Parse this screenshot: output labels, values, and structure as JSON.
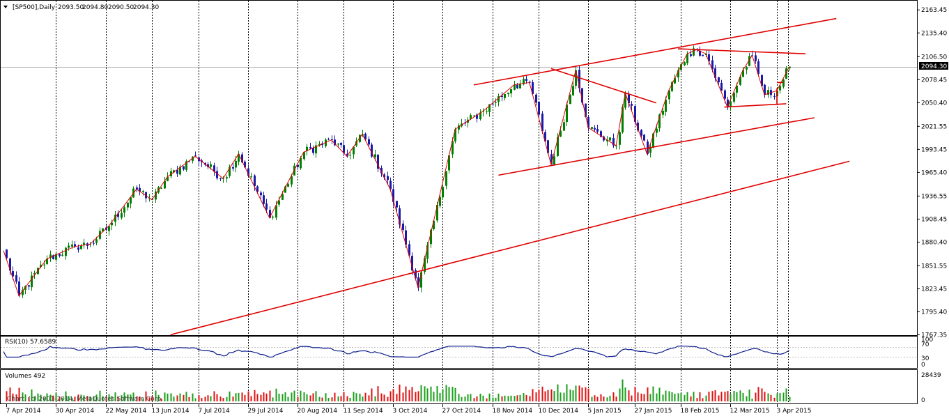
{
  "window": {
    "title": "[SP500],Daily",
    "ohlc": [
      "2093.50",
      "2094.80",
      "2090.50",
      "2094.30"
    ]
  },
  "colors": {
    "up": "#008000",
    "down": "#1a1aa6",
    "trendline": "#e00000",
    "rsi": "#0a1a8c",
    "volume_up": "#1a9e1a",
    "volume_down": "#e01010",
    "grid": "#000000",
    "price_marker_bg": "#000000"
  },
  "rsi_panel": {
    "label": "RSI(10) 57.6589",
    "levels": [
      "100",
      "70",
      "30",
      "0"
    ]
  },
  "volume_panel": {
    "label": "Volumes 492",
    "levels": [
      "28439",
      "0"
    ],
    "watermark": "Chart, (c) 2001-2014, MetaQuotes Software Corp."
  },
  "chart_data": [
    {
      "type": "candlestick",
      "title": "[SP500],Daily",
      "ohlc_last": {
        "open": 2093.5,
        "high": 2094.8,
        "low": 2090.5,
        "close": 2094.3
      },
      "last_price_label": "2094.30",
      "ylim": [
        1761.0,
        2173.0
      ],
      "y_tick_labels": [
        "2163.45",
        "2135.40",
        "2106.50",
        "2078.45",
        "2050.40",
        "2021.55",
        "1993.45",
        "1965.40",
        "1936.55",
        "1908.45",
        "1880.40",
        "1851.55",
        "1823.45",
        "1795.40",
        "1767.35"
      ],
      "x_tick_labels": [
        "7 Apr 2014",
        "30 Apr 2014",
        "22 May 2014",
        "13 Jun 2014",
        "7 Jul 2014",
        "29 Jul 2014",
        "20 Aug 2014",
        "11 Sep 2014",
        "3 Oct 2014",
        "27 Oct 2014",
        "18 Nov 2014",
        "10 Dec 2014",
        "5 Jan 2015",
        "27 Jan 2015",
        "18 Feb 2015",
        "12 Mar 2015",
        "3 Apr 2015"
      ],
      "close_path_keypoints": [
        {
          "date": "2014-04-04",
          "close": 1870
        },
        {
          "date": "2014-04-11",
          "close": 1815
        },
        {
          "date": "2014-04-25",
          "close": 1860
        },
        {
          "date": "2014-05-08",
          "close": 1875
        },
        {
          "date": "2014-05-15",
          "close": 1878
        },
        {
          "date": "2014-05-23",
          "close": 1900
        },
        {
          "date": "2014-06-06",
          "close": 1945
        },
        {
          "date": "2014-06-13",
          "close": 1932
        },
        {
          "date": "2014-06-20",
          "close": 1960
        },
        {
          "date": "2014-07-03",
          "close": 1985
        },
        {
          "date": "2014-07-17",
          "close": 1958
        },
        {
          "date": "2014-07-24",
          "close": 1988
        },
        {
          "date": "2014-08-07",
          "close": 1910
        },
        {
          "date": "2014-08-22",
          "close": 1990
        },
        {
          "date": "2014-09-05",
          "close": 2005
        },
        {
          "date": "2014-09-12",
          "close": 1985
        },
        {
          "date": "2014-09-19",
          "close": 2012
        },
        {
          "date": "2014-10-02",
          "close": 1945
        },
        {
          "date": "2014-10-15",
          "close": 1825
        },
        {
          "date": "2014-10-31",
          "close": 2018
        },
        {
          "date": "2014-11-13",
          "close": 2040
        },
        {
          "date": "2014-11-28",
          "close": 2072
        },
        {
          "date": "2014-12-05",
          "close": 2075
        },
        {
          "date": "2014-12-16",
          "close": 1975
        },
        {
          "date": "2014-12-29",
          "close": 2090
        },
        {
          "date": "2015-01-05",
          "close": 2020
        },
        {
          "date": "2015-01-16",
          "close": 1998
        },
        {
          "date": "2015-01-22",
          "close": 2062
        },
        {
          "date": "2015-02-02",
          "close": 1988
        },
        {
          "date": "2015-02-11",
          "close": 2065
        },
        {
          "date": "2015-02-20",
          "close": 2110
        },
        {
          "date": "2015-02-25",
          "close": 2115
        },
        {
          "date": "2015-03-02",
          "close": 2110
        },
        {
          "date": "2015-03-11",
          "close": 2045
        },
        {
          "date": "2015-03-18",
          "close": 2090
        },
        {
          "date": "2015-03-23",
          "close": 2108
        },
        {
          "date": "2015-03-27",
          "close": 2060
        },
        {
          "date": "2015-04-02",
          "close": 2065
        },
        {
          "date": "2015-04-09",
          "close": 2094.3
        }
      ]
    },
    {
      "type": "line",
      "title": "RSI(10) 57.6589",
      "ylim": [
        0,
        100
      ],
      "levels": [
        30,
        70
      ],
      "last_value": 57.6589
    },
    {
      "type": "bar",
      "title": "Volumes 492",
      "ylim": [
        0,
        28439
      ],
      "last_value": 492
    }
  ]
}
